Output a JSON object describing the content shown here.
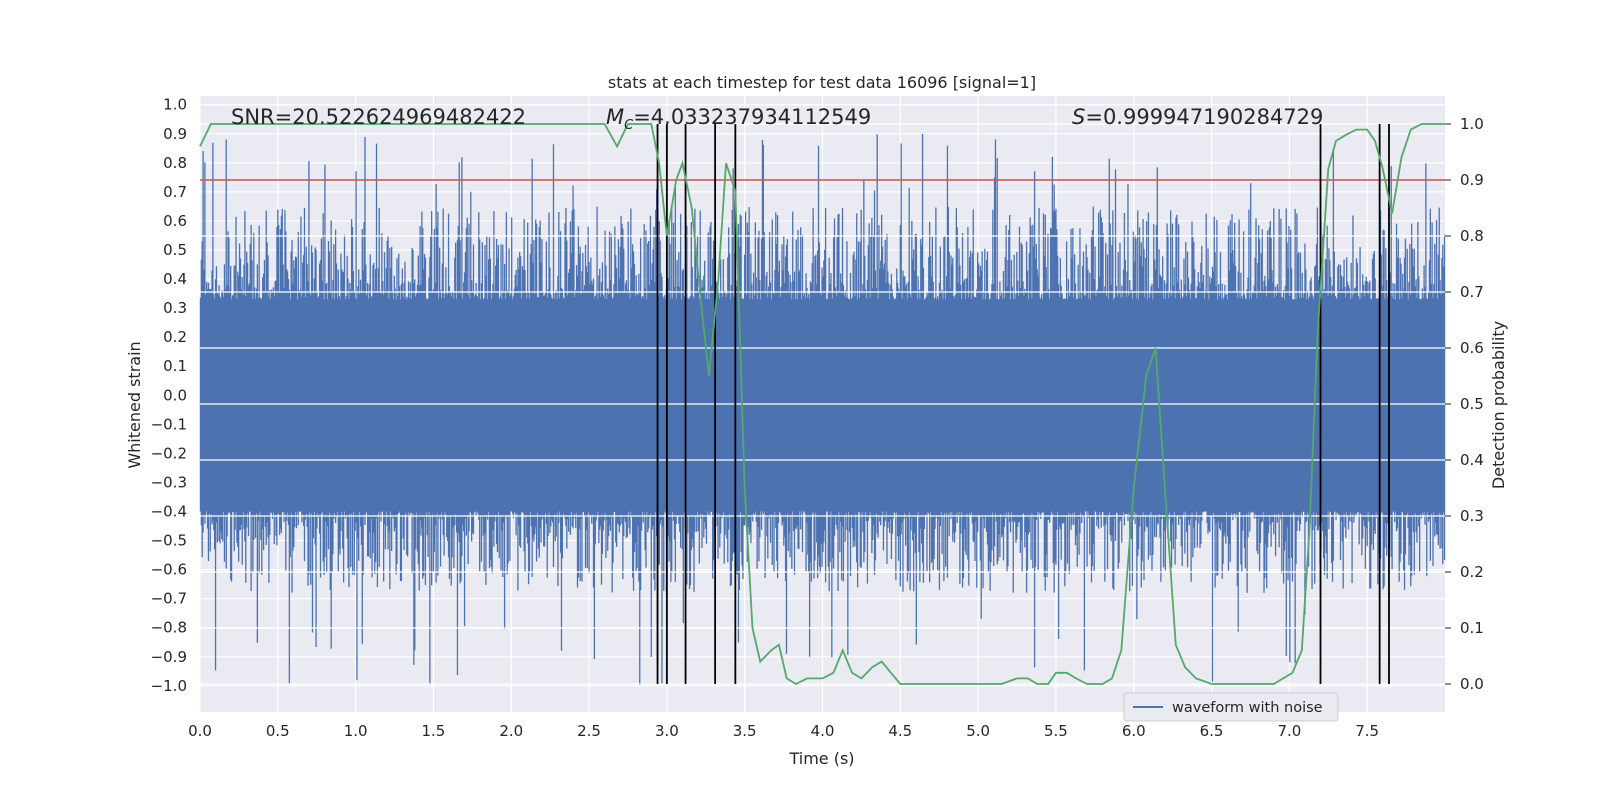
{
  "chart_data": {
    "type": "line",
    "title": "stats at each timestep for test data 16096 [signal=1]",
    "xlabel": "Time (s)",
    "ylabel_left": "Whitened strain",
    "ylabel_right": "Detection probability",
    "xlim": [
      0.0,
      8.0
    ],
    "ylim_left": [
      -1.09,
      1.03
    ],
    "ylim_right": [
      -0.05,
      1.05
    ],
    "x_ticks": [
      "0.0",
      "0.5",
      "1.0",
      "1.5",
      "2.0",
      "2.5",
      "3.0",
      "3.5",
      "4.0",
      "4.5",
      "5.0",
      "5.5",
      "6.0",
      "6.5",
      "7.0",
      "7.5"
    ],
    "y_ticks_left": [
      "1.0",
      "0.9",
      "0.8",
      "0.7",
      "0.6",
      "0.5",
      "0.4",
      "0.3",
      "0.2",
      "0.1",
      "0.0",
      "−0.1",
      "−0.2",
      "−0.3",
      "−0.4",
      "−0.5",
      "−0.6",
      "−0.7",
      "−0.8",
      "−0.9",
      "−1.0"
    ],
    "y_ticks_right": [
      "1.0",
      "0.9",
      "0.8",
      "0.7",
      "0.6",
      "0.5",
      "0.4",
      "0.3",
      "0.2",
      "0.1",
      "0.0"
    ],
    "grid": true,
    "legend_position": "lower-right",
    "annotations": {
      "snr": "SNR=20.522624969482422",
      "mc": "=4.033237934112549",
      "s": "=0.999947190284729",
      "mc_symbol": "M",
      "mc_sub": "C",
      "s_symbol": "S"
    },
    "threshold_right": 0.9,
    "vlines_x": [
      2.94,
      3.0,
      3.12,
      3.31,
      3.44,
      7.2,
      7.58,
      7.64
    ],
    "series": [
      {
        "name": "waveform with noise",
        "color": "#4c72b0",
        "note_envelope": "dense noise, roughly within ±0.55",
        "x": [
          0.0,
          1.0,
          2.0,
          3.0,
          4.0,
          5.0,
          6.0,
          7.0,
          8.0
        ],
        "y": [
          0.0,
          0.0,
          0.0,
          0.0,
          0.0,
          0.0,
          0.0,
          0.0,
          0.0
        ]
      },
      {
        "name": "",
        "color": "#55a868",
        "x": [
          0.0,
          0.07,
          0.5,
          1.0,
          1.5,
          2.0,
          2.5,
          2.6,
          2.68,
          2.75,
          2.82,
          2.9,
          2.95,
          3.0,
          3.06,
          3.1,
          3.16,
          3.22,
          3.27,
          3.33,
          3.38,
          3.44,
          3.5,
          3.55,
          3.6,
          3.67,
          3.72,
          3.77,
          3.83,
          3.9,
          4.0,
          4.07,
          4.13,
          4.19,
          4.25,
          4.32,
          4.38,
          4.44,
          4.5,
          4.6,
          4.7,
          4.8,
          5.0,
          5.15,
          5.25,
          5.32,
          5.38,
          5.45,
          5.5,
          5.57,
          5.63,
          5.7,
          5.8,
          5.86,
          5.92,
          6.0,
          6.08,
          6.14,
          6.2,
          6.27,
          6.33,
          6.4,
          6.5,
          6.6,
          6.8,
          6.9,
          6.96,
          7.02,
          7.08,
          7.13,
          7.18,
          7.25,
          7.3,
          7.36,
          7.43,
          7.5,
          7.55,
          7.6,
          7.66,
          7.72,
          7.78,
          7.85,
          7.92,
          8.0
        ],
        "y": [
          0.96,
          1.0,
          1.0,
          1.0,
          1.0,
          1.0,
          1.0,
          1.0,
          0.96,
          1.0,
          1.0,
          1.0,
          0.93,
          0.8,
          0.9,
          0.93,
          0.85,
          0.68,
          0.55,
          0.72,
          0.93,
          0.88,
          0.35,
          0.1,
          0.04,
          0.06,
          0.07,
          0.01,
          0.0,
          0.01,
          0.01,
          0.02,
          0.06,
          0.02,
          0.01,
          0.03,
          0.04,
          0.02,
          0.0,
          0.0,
          0.0,
          0.0,
          0.0,
          0.0,
          0.01,
          0.01,
          0.0,
          0.0,
          0.02,
          0.02,
          0.01,
          0.0,
          0.0,
          0.01,
          0.06,
          0.35,
          0.55,
          0.6,
          0.35,
          0.07,
          0.03,
          0.01,
          0.0,
          0.0,
          0.0,
          0.0,
          0.01,
          0.02,
          0.06,
          0.28,
          0.62,
          0.92,
          0.97,
          0.98,
          0.99,
          0.99,
          0.97,
          0.92,
          0.84,
          0.94,
          0.99,
          1.0,
          1.0,
          1.0
        ]
      }
    ]
  }
}
